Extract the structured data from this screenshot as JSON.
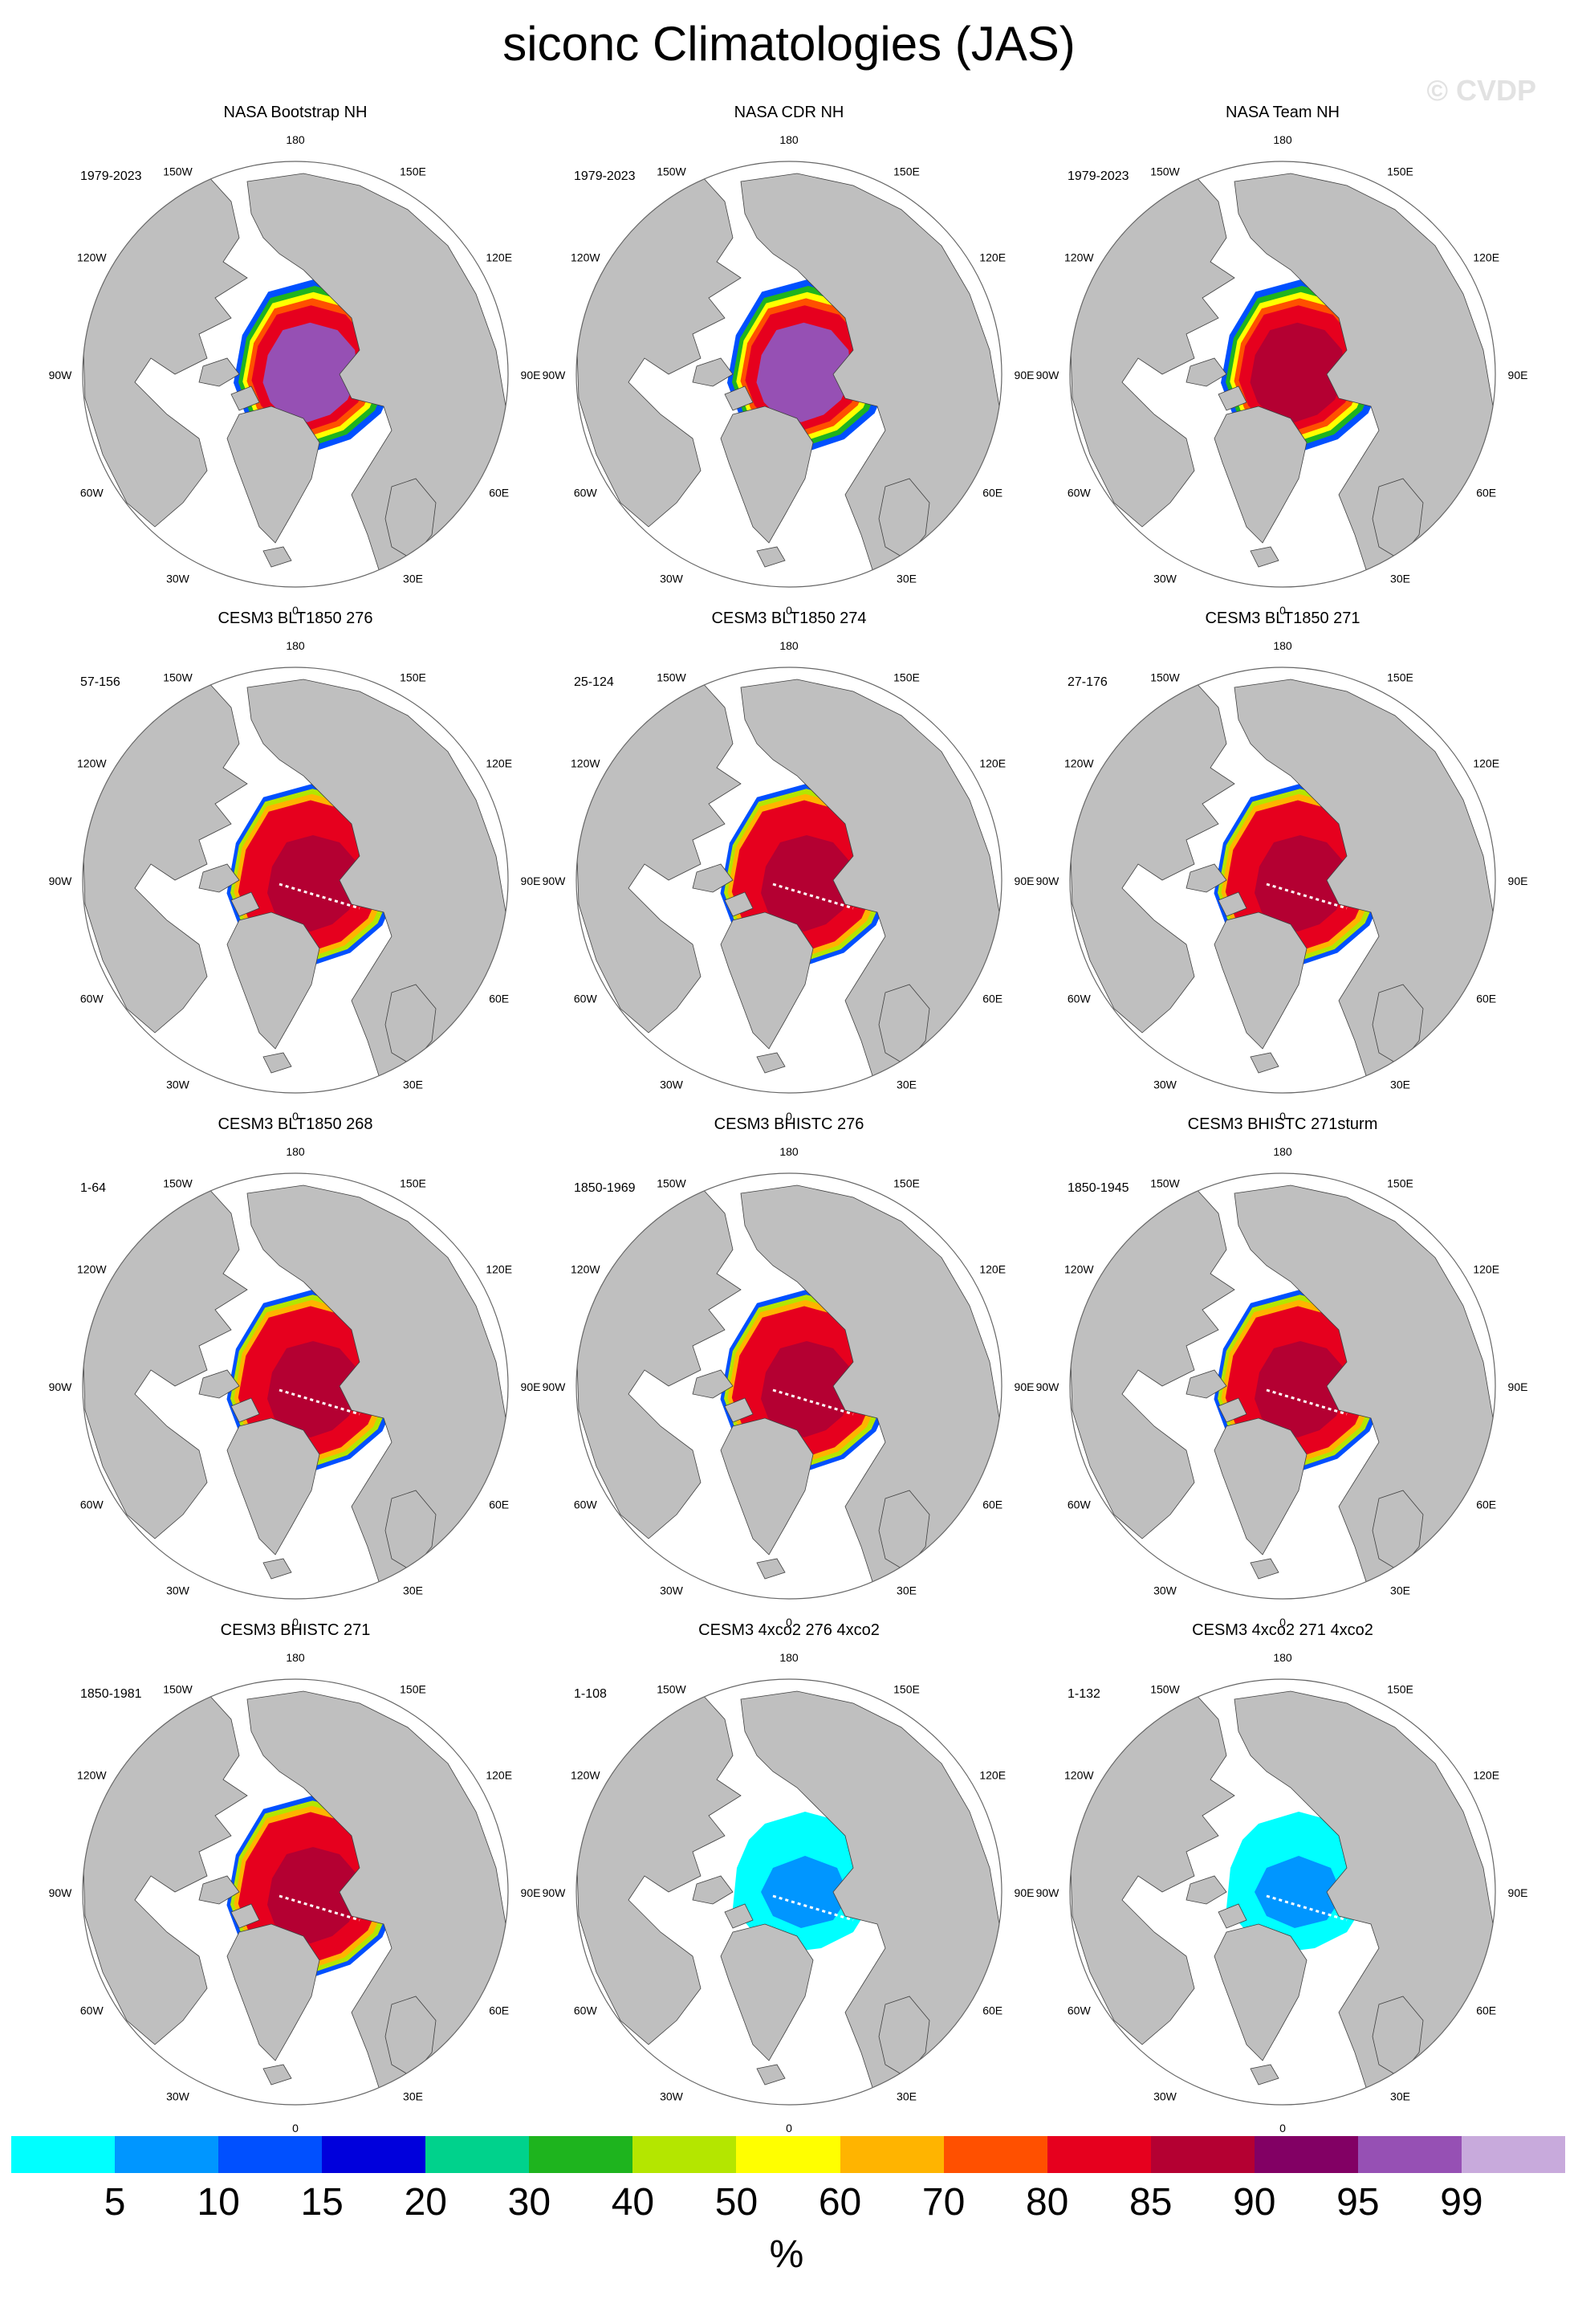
{
  "title": "siconc Climatologies (JAS)",
  "watermark": "© CVDP",
  "lon_labels": [
    "180",
    "150E",
    "120E",
    "90E",
    "60E",
    "30E",
    "0",
    "30W",
    "60W",
    "90W",
    "120W",
    "150W"
  ],
  "panels": [
    {
      "title": "NASA Bootstrap NH",
      "years": "1979-2023",
      "pattern": "obs-bootstrap"
    },
    {
      "title": "NASA CDR NH",
      "years": "1979-2023",
      "pattern": "obs-cdr"
    },
    {
      "title": "NASA Team NH",
      "years": "1979-2023",
      "pattern": "obs-team"
    },
    {
      "title": "CESM3 BLT1850 276",
      "years": "57-156",
      "pattern": "model-control"
    },
    {
      "title": "CESM3 BLT1850 274",
      "years": "25-124",
      "pattern": "model-control"
    },
    {
      "title": "CESM3 BLT1850 271",
      "years": "27-176",
      "pattern": "model-control"
    },
    {
      "title": "CESM3 BLT1850 268",
      "years": "1-64",
      "pattern": "model-control"
    },
    {
      "title": "CESM3 BHISTC 276",
      "years": "1850-1969",
      "pattern": "model-control"
    },
    {
      "title": "CESM3 BHISTC 271sturm",
      "years": "1850-1945",
      "pattern": "model-control"
    },
    {
      "title": "CESM3 BHISTC 271",
      "years": "1850-1981",
      "pattern": "model-control"
    },
    {
      "title": "CESM3 4xco2 276 4xco2",
      "years": "1-108",
      "pattern": "model-4xco2"
    },
    {
      "title": "CESM3 4xco2 271 4xco2",
      "years": "1-132",
      "pattern": "model-4xco2"
    }
  ],
  "colorbar": {
    "unit": "%",
    "labels": [
      "5",
      "10",
      "15",
      "20",
      "30",
      "40",
      "50",
      "60",
      "70",
      "80",
      "85",
      "90",
      "95",
      "99"
    ],
    "colors": [
      "#00ffff",
      "#0096ff",
      "#0050ff",
      "#0000dc",
      "#00d28c",
      "#1eb41e",
      "#b4e600",
      "#ffff00",
      "#ffb400",
      "#ff5000",
      "#e6001e",
      "#b40032",
      "#820064",
      "#9650b4",
      "#c8aadc"
    ]
  },
  "colors": {
    "land": "#bfbfbf",
    "ocean": "#ffffff",
    "outline": "#404040"
  }
}
